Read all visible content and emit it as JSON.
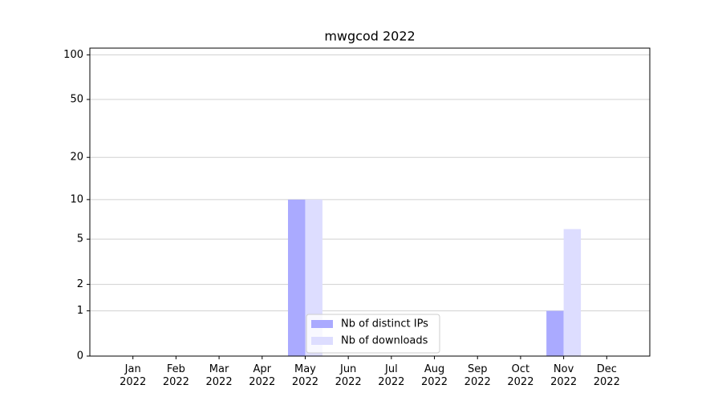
{
  "chart_data": {
    "type": "bar",
    "title": "mwgcod 2022",
    "categories": [
      "Jan 2022",
      "Feb 2022",
      "Mar 2022",
      "Apr 2022",
      "May 2022",
      "Jun 2022",
      "Jul 2022",
      "Aug 2022",
      "Sep 2022",
      "Oct 2022",
      "Nov 2022",
      "Dec 2022"
    ],
    "series": [
      {
        "name": "Nb of distinct IPs",
        "color": "#aaaaff",
        "values": [
          0,
          0,
          0,
          0,
          10,
          0,
          0,
          0,
          0,
          0,
          1,
          0
        ]
      },
      {
        "name": "Nb of downloads",
        "color": "#ddddff",
        "values": [
          0,
          0,
          0,
          0,
          10,
          0,
          0,
          0,
          0,
          0,
          6,
          0
        ]
      }
    ],
    "yscale": "log1p",
    "ylim": [
      0,
      111
    ],
    "yticks": [
      0,
      1,
      2,
      5,
      10,
      20,
      50,
      100
    ],
    "grid": true,
    "legend": "lower center"
  }
}
